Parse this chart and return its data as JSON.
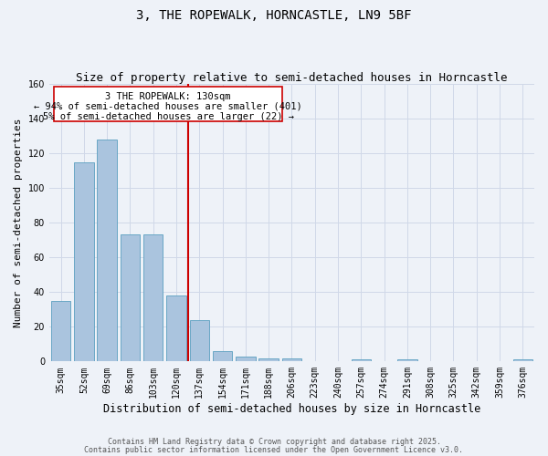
{
  "title": "3, THE ROPEWALK, HORNCASTLE, LN9 5BF",
  "subtitle": "Size of property relative to semi-detached houses in Horncastle",
  "xlabel": "Distribution of semi-detached houses by size in Horncastle",
  "ylabel": "Number of semi-detached properties",
  "categories": [
    "35sqm",
    "52sqm",
    "69sqm",
    "86sqm",
    "103sqm",
    "120sqm",
    "137sqm",
    "154sqm",
    "171sqm",
    "188sqm",
    "206sqm",
    "223sqm",
    "240sqm",
    "257sqm",
    "274sqm",
    "291sqm",
    "308sqm",
    "325sqm",
    "342sqm",
    "359sqm",
    "376sqm"
  ],
  "values": [
    35,
    115,
    128,
    73,
    73,
    38,
    24,
    6,
    3,
    2,
    2,
    0,
    0,
    1,
    0,
    1,
    0,
    0,
    0,
    0,
    1
  ],
  "bar_color": "#aac4de",
  "bar_edge_color": "#5a9fc0",
  "grid_color": "#d0d8e8",
  "background_color": "#eef2f8",
  "redline_bin": 5,
  "annotation_title": "3 THE ROPEWALK: 130sqm",
  "annotation_line1": "← 94% of semi-detached houses are smaller (401)",
  "annotation_line2": "5% of semi-detached houses are larger (22) →",
  "annotation_box_color": "#ffffff",
  "annotation_box_edge": "#cc0000",
  "redline_color": "#cc0000",
  "footer1": "Contains HM Land Registry data © Crown copyright and database right 2025.",
  "footer2": "Contains public sector information licensed under the Open Government Licence v3.0.",
  "ylim": [
    0,
    160
  ],
  "title_fontsize": 10,
  "subtitle_fontsize": 9,
  "xlabel_fontsize": 8.5,
  "ylabel_fontsize": 8,
  "tick_fontsize": 7,
  "annotation_fontsize": 7.5,
  "footer_fontsize": 6
}
